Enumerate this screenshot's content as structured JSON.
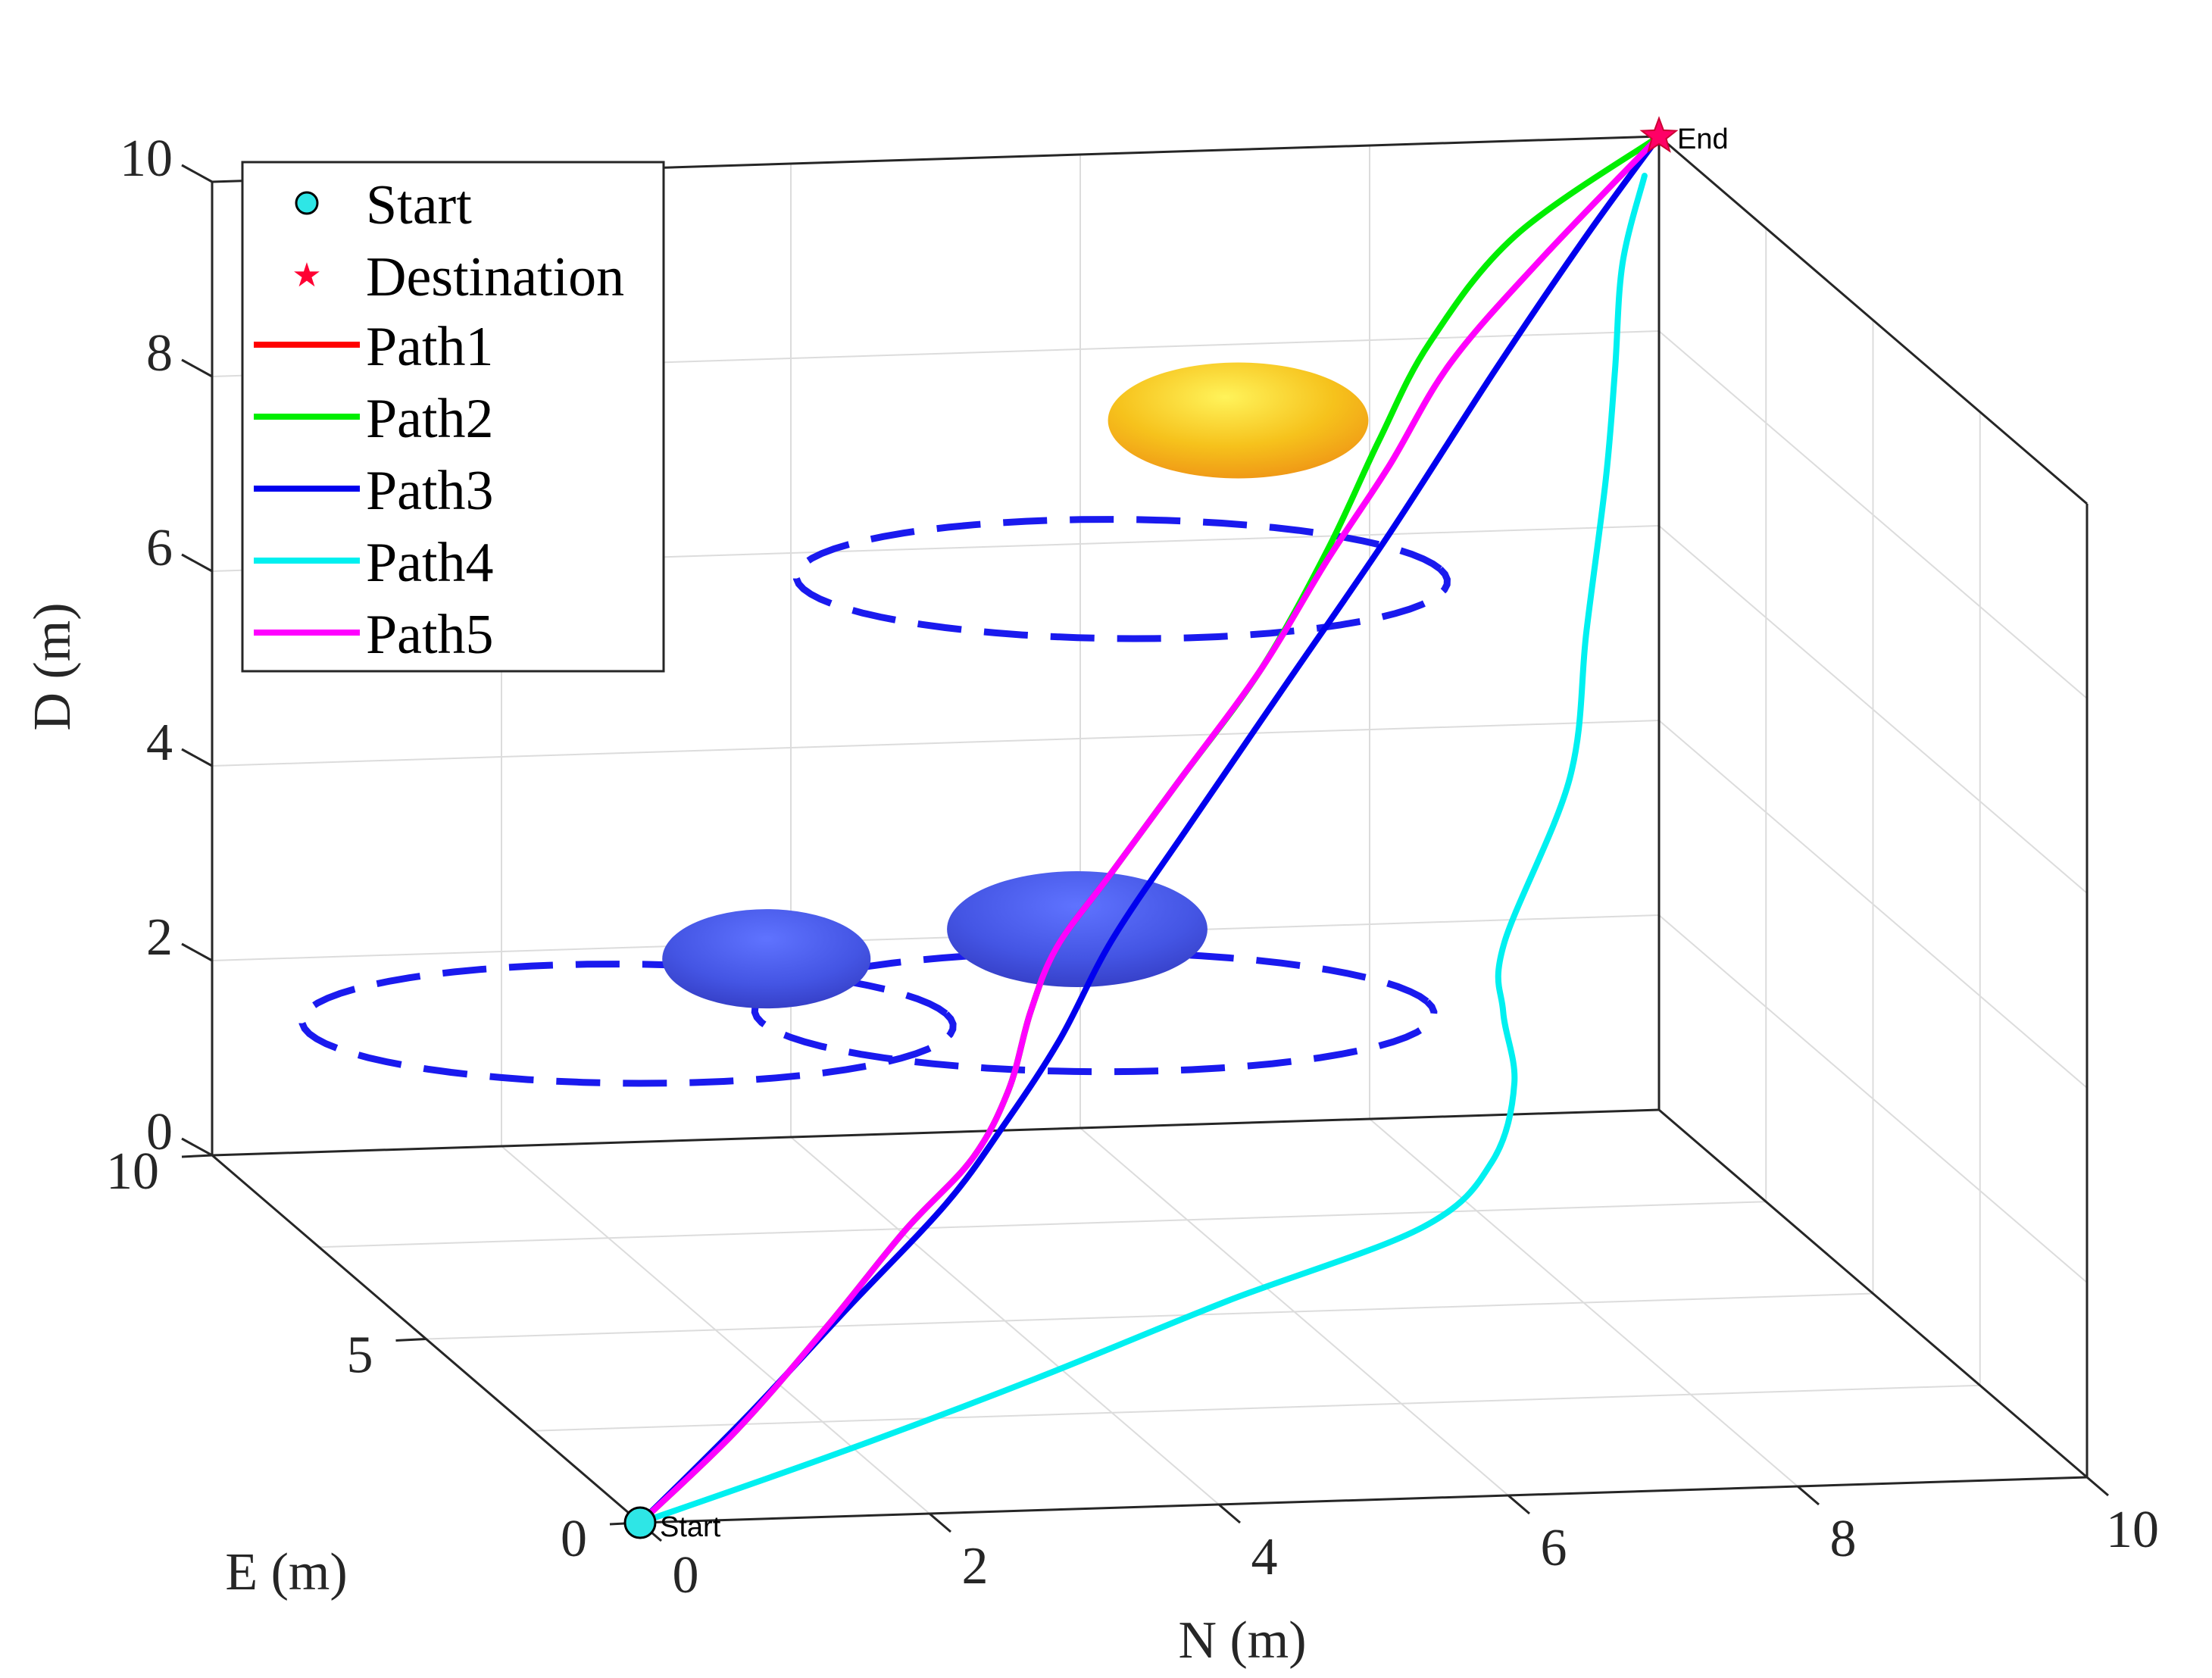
{
  "chart_data": {
    "type": "line3d",
    "title": "",
    "xlabel": "N (m)",
    "ylabel": "E (m)",
    "zlabel": "D (m)",
    "xlim": [
      0,
      10
    ],
    "ylim": [
      0,
      10
    ],
    "zlim": [
      0,
      10
    ],
    "xticks": [
      "0",
      "2",
      "4",
      "6",
      "8",
      "10"
    ],
    "yticks": [
      "0",
      "5",
      "10"
    ],
    "zticks": [
      "0",
      "2",
      "4",
      "6",
      "8",
      "10"
    ],
    "grid": true,
    "legend_position": "top-left",
    "start": {
      "label": "Start",
      "legend": "Start",
      "color": "#2ee6e6",
      "point": [
        0,
        0,
        0
      ]
    },
    "destination": {
      "label": "End",
      "legend": "Destination",
      "color": "#ff0066",
      "point": [
        10,
        10,
        10
      ]
    },
    "series": [
      {
        "name": "Path1",
        "color": "#ff0000",
        "points": [
          [
            0,
            0,
            0
          ],
          [
            0.9,
            0.8,
            0.6
          ],
          [
            1.8,
            1.7,
            1.3
          ],
          [
            2.6,
            2.6,
            1.9
          ],
          [
            3.3,
            3.4,
            2.3
          ],
          [
            3.7,
            3.9,
            2.8
          ],
          [
            4.0,
            4.4,
            3.4
          ],
          [
            4.3,
            4.8,
            3.9
          ],
          [
            4.8,
            5.3,
            4.4
          ],
          [
            5.5,
            6.0,
            5.1
          ],
          [
            6.3,
            6.8,
            5.9
          ],
          [
            7.0,
            7.6,
            6.7
          ],
          [
            7.6,
            8.2,
            7.4
          ],
          [
            8.2,
            8.8,
            8.2
          ],
          [
            9.0,
            9.4,
            9.0
          ],
          [
            10,
            10,
            10
          ]
        ]
      },
      {
        "name": "Path2",
        "color": "#00ee00",
        "points": [
          [
            0,
            0,
            0
          ],
          [
            0.9,
            0.8,
            0.6
          ],
          [
            1.8,
            1.7,
            1.3
          ],
          [
            2.6,
            2.6,
            1.9
          ],
          [
            3.3,
            3.4,
            2.3
          ],
          [
            3.7,
            3.9,
            2.8
          ],
          [
            4.0,
            4.4,
            3.4
          ],
          [
            4.3,
            4.8,
            3.9
          ],
          [
            4.8,
            5.3,
            4.4
          ],
          [
            5.5,
            6.0,
            5.1
          ],
          [
            6.3,
            6.8,
            5.9
          ],
          [
            7.0,
            7.6,
            6.8
          ],
          [
            7.5,
            8.1,
            7.7
          ],
          [
            8.0,
            8.6,
            8.5
          ],
          [
            8.8,
            9.3,
            9.3
          ],
          [
            10,
            10,
            10
          ]
        ]
      },
      {
        "name": "Path3",
        "color": "#0000ee",
        "points": [
          [
            0,
            0,
            0
          ],
          [
            1.0,
            0.9,
            0.7
          ],
          [
            2.0,
            1.9,
            1.4
          ],
          [
            3.0,
            3.0,
            2.0
          ],
          [
            3.6,
            3.7,
            2.5
          ],
          [
            4.2,
            4.4,
            3.1
          ],
          [
            4.8,
            5.2,
            3.8
          ],
          [
            5.6,
            6.1,
            4.6
          ],
          [
            6.6,
            7.2,
            5.6
          ],
          [
            7.6,
            8.2,
            6.7
          ],
          [
            8.6,
            9.1,
            8.0
          ],
          [
            9.4,
            9.7,
            9.1
          ],
          [
            10,
            10,
            10
          ]
        ]
      },
      {
        "name": "Path4",
        "color": "#00f0f0",
        "points": [
          [
            0,
            0,
            0
          ],
          [
            1.5,
            0.4,
            0.5
          ],
          [
            3.0,
            0.9,
            1.0
          ],
          [
            4.5,
            1.5,
            1.5
          ],
          [
            6.0,
            2.0,
            2.0
          ],
          [
            6.6,
            2.4,
            2.5
          ],
          [
            6.9,
            2.9,
            3.1
          ],
          [
            7.0,
            3.5,
            3.6
          ],
          [
            7.3,
            4.5,
            3.9
          ],
          [
            8.2,
            6.0,
            5.0
          ],
          [
            8.7,
            7.3,
            6.0
          ],
          [
            9.1,
            8.2,
            7.2
          ],
          [
            9.4,
            9.0,
            8.0
          ],
          [
            9.6,
            9.5,
            8.9
          ],
          [
            9.9,
            10,
            9.6
          ]
        ]
      },
      {
        "name": "Path5",
        "color": "#ff00ff",
        "points": [
          [
            0,
            0,
            0
          ],
          [
            0.9,
            0.8,
            0.6
          ],
          [
            1.8,
            1.7,
            1.3
          ],
          [
            2.6,
            2.6,
            1.9
          ],
          [
            3.3,
            3.4,
            2.3
          ],
          [
            3.7,
            3.9,
            2.8
          ],
          [
            4.0,
            4.4,
            3.4
          ],
          [
            4.3,
            4.8,
            3.9
          ],
          [
            4.8,
            5.3,
            4.4
          ],
          [
            5.5,
            6.0,
            5.1
          ],
          [
            6.3,
            6.8,
            5.9
          ],
          [
            7.0,
            7.6,
            6.7
          ],
          [
            7.6,
            8.2,
            7.4
          ],
          [
            8.2,
            8.8,
            8.2
          ],
          [
            9.0,
            9.4,
            9.0
          ],
          [
            10,
            10,
            10
          ]
        ]
      }
    ],
    "obstacles": [
      {
        "name": "obstacle-yellow",
        "color": "#f5c21b",
        "center": [
          6.5,
          8.0,
          8.0
        ],
        "size": [
          1.0,
          1.0,
          0.7
        ],
        "ring": {
          "center": [
            5.4,
            7.0,
            6.8
          ],
          "radius": [
            2.2,
            1.6
          ]
        }
      },
      {
        "name": "obstacle-blue-large",
        "color": "#4f5ce8",
        "center": [
          4.5,
          5.0,
          4.0
        ],
        "size": [
          1.0,
          1.0,
          0.7
        ],
        "ring": {
          "center": [
            4.5,
            4.6,
            3.3
          ],
          "radius": [
            2.3,
            1.6
          ]
        }
      },
      {
        "name": "obstacle-blue-small",
        "color": "#4f5ce8",
        "center": [
          2.5,
          5.5,
          3.6
        ],
        "size": [
          0.8,
          0.8,
          0.6
        ],
        "ring": {
          "center": [
            1.6,
            5.7,
            2.9
          ],
          "radius": [
            2.2,
            1.6
          ]
        }
      }
    ]
  }
}
